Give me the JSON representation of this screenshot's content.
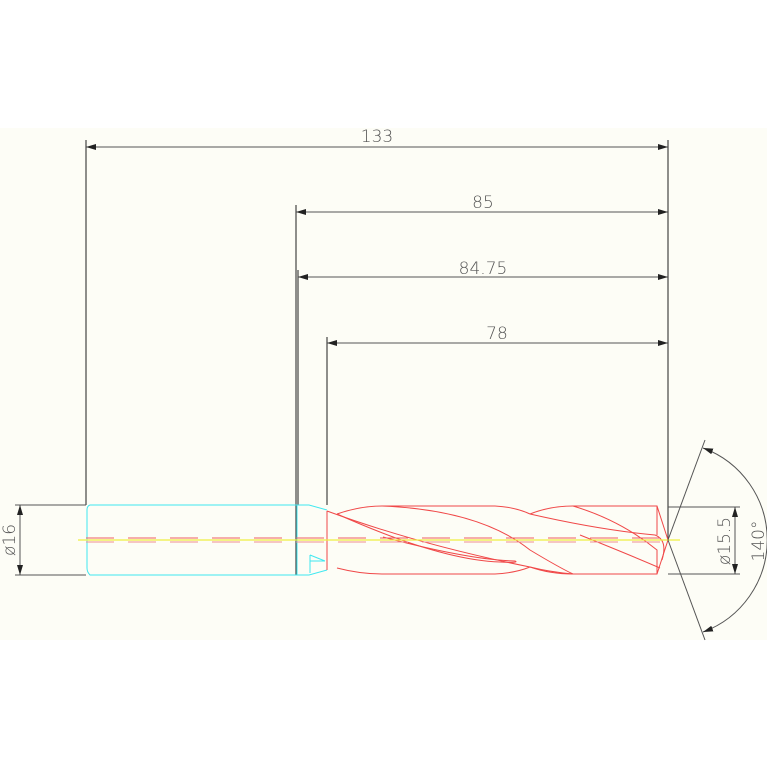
{
  "drawing": {
    "dimensions": {
      "overall_length": "133",
      "length_85": "85",
      "length_84_75": "84.75",
      "flute_length": "78",
      "shank_diameter": "ø16",
      "drill_diameter": "ø15.5",
      "point_angle": "140°"
    },
    "colors": {
      "background": "#fdfdf6",
      "body": "#f04848",
      "shank": "#40e8f0",
      "centerline": "#f0f040",
      "dimension": "#555555"
    }
  }
}
